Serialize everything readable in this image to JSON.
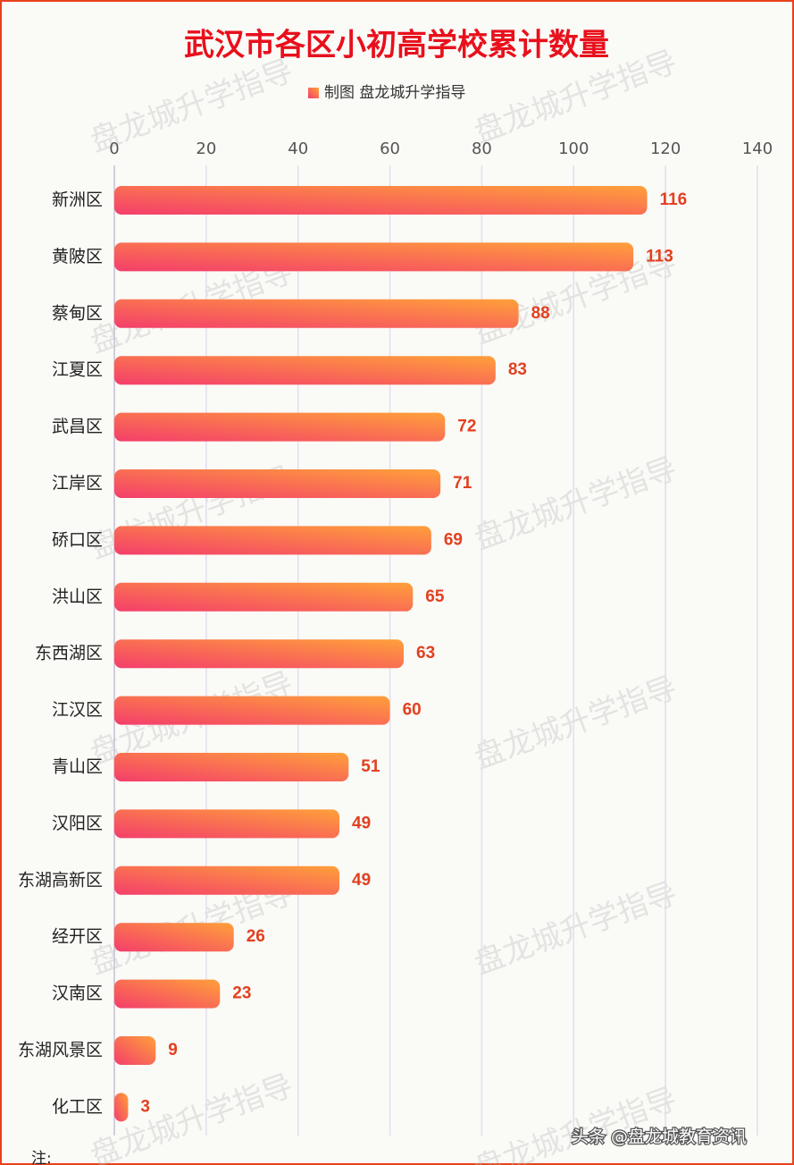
{
  "chart_data": {
    "type": "bar",
    "orientation": "horizontal",
    "title": "武汉市各区小初高学校累计数量",
    "legend_label": "制图 盘龙城升学指导",
    "categories": [
      "新洲区",
      "黄陂区",
      "蔡甸区",
      "江夏区",
      "武昌区",
      "江岸区",
      "硚口区",
      "洪山区",
      "东西湖区",
      "江汉区",
      "青山区",
      "汉阳区",
      "东湖高新区",
      "经开区",
      "汉南区",
      "东湖风景区",
      "化工区"
    ],
    "values": [
      116,
      113,
      88,
      83,
      72,
      71,
      69,
      65,
      63,
      60,
      51,
      49,
      49,
      26,
      23,
      9,
      3
    ],
    "colors": [
      "#f43e6b",
      "#ffa03a"
    ],
    "xlim": [
      0,
      140
    ],
    "xticks": [
      0,
      20,
      40,
      60,
      80,
      100,
      120,
      140
    ],
    "grid": true,
    "watermark": "盘龙城升学指导",
    "note": "注:",
    "footer": "头条 @盘龙城教育资讯"
  }
}
